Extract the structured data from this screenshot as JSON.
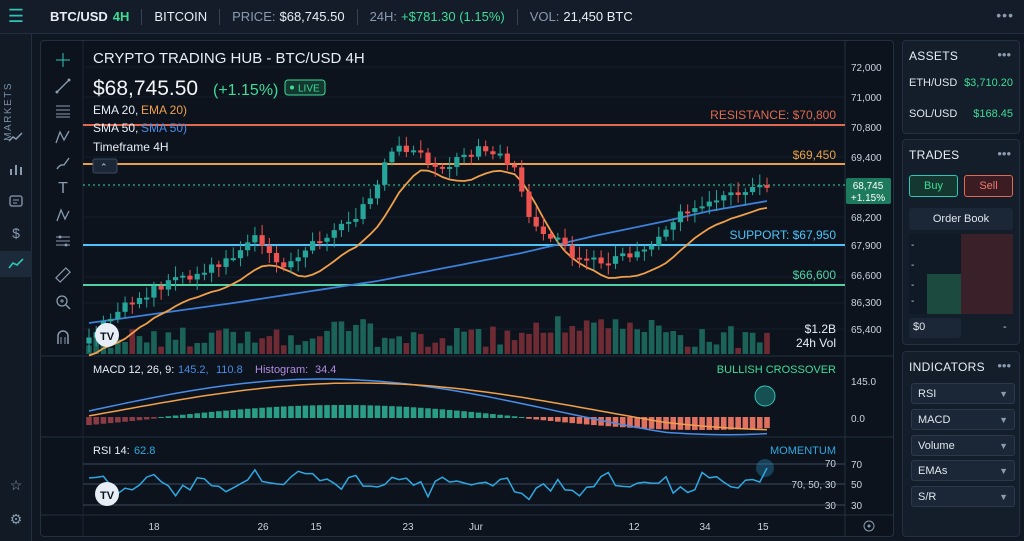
{
  "topbar": {
    "symbol": "BTC/USD",
    "interval": "4H",
    "name": "BITCOIN",
    "price_label": "PRICE:",
    "price": "$68,745.50",
    "change_label": "24H:",
    "change": "+$781.30 (1.15%)",
    "vol_label": "VOL:",
    "vol": "21,450 BTC"
  },
  "leftnav": {
    "label": "MARKETS"
  },
  "chart_header": {
    "title": "CRYPTO TRADING HUB - BTC/USD 4H",
    "price": "$68,745.50",
    "change": "(+1.15%)",
    "live": "LIVE",
    "ema_label": "EMA 20,",
    "ema_value": "EMA 20)",
    "sma_label": "SMA 50,",
    "sma_value": "SMA 50)",
    "timeframe": "Timeframe 4H"
  },
  "levels": {
    "resistance": "RESISTANCE: $70,800",
    "l69450": "$69,450",
    "support": "SUPPORT: $67,950",
    "l66600": "$66,600",
    "current": "68,745",
    "current_change": "+1.15%"
  },
  "volume_note": {
    "value": "$1.2B",
    "label": "24h Vol"
  },
  "macd": {
    "label": "MACD 12, 26, 9:",
    "v1": "145.2,",
    "v2": "110.8",
    "hist_label": "Histogram:",
    "hist": "34.4",
    "badge": "BULLISH CROSSOVER",
    "ticks": [
      "145.0",
      "0.0"
    ]
  },
  "rsi": {
    "label": "RSI 14:",
    "value": "62.8",
    "badge": "MOMENTUM",
    "line_labels": [
      "70",
      "70, 50, 30",
      "30"
    ],
    "ticks": [
      "70",
      "50",
      "30"
    ]
  },
  "price_axis": [
    "72,000",
    "71,000",
    "70,800",
    "69,400",
    "68,200",
    "67,900",
    "66,600",
    "86,300",
    "65,400"
  ],
  "x_axis": [
    "18",
    "26",
    "15",
    "23",
    "Jur",
    "12",
    "34",
    "15"
  ],
  "assets": {
    "title": "ASSETS",
    "rows": [
      {
        "name": "ETH/USD",
        "value": "$3,710.20"
      },
      {
        "name": "SOL/USD",
        "value": "$168.45"
      }
    ]
  },
  "trades": {
    "title": "TRADES",
    "buy": "Buy",
    "sell": "Sell",
    "order_book": "Order Book",
    "dashes": [
      "-",
      "-",
      "-",
      "-"
    ],
    "input_value": "$0",
    "input_dash": "-"
  },
  "indicators": {
    "title": "INDICATORS",
    "items": [
      "RSI",
      "MACD",
      "Volume",
      "EMAs",
      "S/R"
    ]
  },
  "colors": {
    "accent": "#2ec4b6",
    "up": "#26a69a",
    "down": "#ef5350",
    "ema": "#f0a04b",
    "sma": "#4a8de8",
    "resistance": "#e0694f",
    "support": "#4fc3f7",
    "level_green": "#4fd1a5",
    "rsi_line": "#2fa8e0"
  },
  "icons": [
    "menu-icon",
    "crosshair-icon",
    "trendline-icon",
    "fib-icon",
    "pattern-icon",
    "brush-icon",
    "text-icon",
    "measure-icon",
    "ruler-icon",
    "zoom-icon",
    "magnet-icon",
    "star-icon",
    "settings-icon",
    "camera-icon",
    "chart-icon",
    "wallet-icon",
    "dollar-icon"
  ]
}
